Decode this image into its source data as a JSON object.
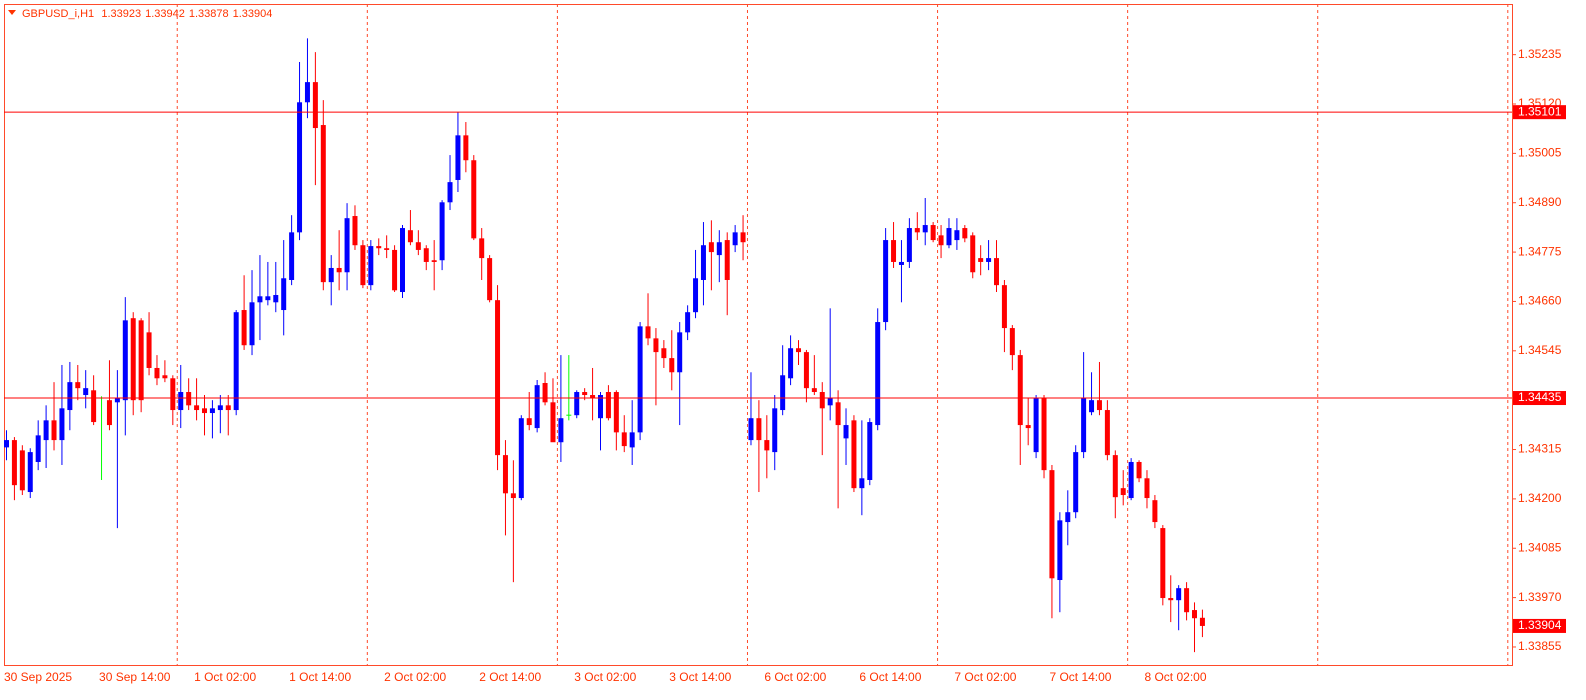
{
  "chart_data": {
    "type": "candlestick",
    "symbol": "GBPUSD_i,H1",
    "up_color": "#0000ff",
    "down_color": "#ff0000",
    "doji_color": "#00ff00",
    "line_color": "#ff0000",
    "label_color": "#ff0000",
    "period_separators": true,
    "ylim": [
      1.33813,
      1.35353
    ],
    "yticks": [
      1.35235,
      {
        "value": 1.3512,
        "label": "1.35120"
      },
      1.35005,
      {
        "value": 1.3489,
        "label": "1.34890"
      },
      1.34775,
      {
        "value": 1.3466,
        "label": "1.34660"
      },
      1.34545,
      1.34315,
      {
        "value": 1.342,
        "label": "1.34200"
      },
      1.34085,
      {
        "value": 1.3397,
        "label": "1.33970"
      },
      1.33855
    ],
    "hlines": [
      1.35101,
      1.34435
    ],
    "categories": [
      "30 Sep 2025",
      null,
      null,
      null,
      null,
      null,
      null,
      null,
      null,
      null,
      null,
      null,
      "30 Sep 14:00",
      null,
      null,
      null,
      null,
      null,
      null,
      null,
      null,
      null,
      null,
      null,
      "1 Oct 02:00",
      null,
      null,
      null,
      null,
      null,
      null,
      null,
      null,
      null,
      null,
      null,
      "1 Oct 14:00",
      null,
      null,
      null,
      null,
      null,
      null,
      null,
      null,
      null,
      null,
      null,
      "2 Oct 02:00",
      null,
      null,
      null,
      null,
      null,
      null,
      null,
      null,
      null,
      null,
      null,
      "2 Oct 14:00",
      null,
      null,
      null,
      null,
      null,
      null,
      null,
      null,
      null,
      null,
      null,
      "3 Oct 02:00",
      null,
      null,
      null,
      null,
      null,
      null,
      null,
      null,
      null,
      null,
      null,
      "3 Oct 14:00",
      null,
      null,
      null,
      null,
      null,
      null,
      null,
      null,
      null,
      null,
      null,
      "6 Oct 02:00",
      null,
      null,
      null,
      null,
      null,
      null,
      null,
      null,
      null,
      null,
      null,
      "6 Oct 14:00",
      null,
      null,
      null,
      null,
      null,
      null,
      null,
      null,
      null,
      null,
      null,
      "7 Oct 02:00",
      null,
      null,
      null,
      null,
      null,
      null,
      null,
      null,
      null,
      null,
      null,
      "7 Oct 14:00",
      null,
      null,
      null,
      null,
      null,
      null,
      null,
      null,
      null,
      null,
      null,
      "8 Oct 02:00",
      null,
      null,
      null,
      null,
      null,
      null,
      null
    ],
    "ohlc": [
      [
        1.3432,
        1.3436,
        1.3429,
        1.34337
      ],
      [
        1.34337,
        1.34344,
        1.34197,
        1.34232
      ],
      [
        1.34313,
        1.34325,
        1.34209,
        1.3422
      ],
      [
        1.34216,
        1.34318,
        1.34202,
        1.34309
      ],
      [
        1.34286,
        1.34383,
        1.34267,
        1.34348
      ],
      [
        1.34337,
        1.34418,
        1.34272,
        1.34383
      ],
      [
        1.34383,
        1.34472,
        1.34313,
        1.34337
      ],
      [
        1.34337,
        1.34512,
        1.34279,
        1.34411
      ],
      [
        1.34407,
        1.34519,
        1.3436,
        1.34472
      ],
      [
        1.34472,
        1.34512,
        1.3443,
        1.34458
      ],
      [
        1.34442,
        1.345,
        1.34411,
        1.34458
      ],
      [
        1.34453,
        1.34488,
        1.34372,
        1.34379
      ],
      [
        1.34435,
        1.34439,
        1.34244,
        1.34435
      ],
      [
        1.3443,
        1.34523,
        1.3436,
        1.34372
      ],
      [
        1.34425,
        1.345,
        1.34132,
        1.34435
      ],
      [
        1.3443,
        1.3467,
        1.34348,
        1.34616
      ],
      [
        1.34621,
        1.34635,
        1.34395,
        1.3443
      ],
      [
        1.34616,
        1.34621,
        1.34402,
        1.3443
      ],
      [
        1.34588,
        1.34635,
        1.34488,
        1.34505
      ],
      [
        1.34505,
        1.34535,
        1.34465,
        1.34481
      ],
      [
        1.34488,
        1.34523,
        1.34472,
        1.34481
      ],
      [
        1.34481,
        1.34488,
        1.34372,
        1.34407
      ],
      [
        1.34407,
        1.34512,
        1.34365,
        1.34449
      ],
      [
        1.34449,
        1.34481,
        1.34407,
        1.34418
      ],
      [
        1.34418,
        1.34481,
        1.34383,
        1.34407
      ],
      [
        1.34411,
        1.34442,
        1.34348,
        1.344
      ],
      [
        1.344,
        1.3443,
        1.34341,
        1.34411
      ],
      [
        1.34407,
        1.34442,
        1.34353,
        1.34418
      ],
      [
        1.34418,
        1.34442,
        1.34348,
        1.34407
      ],
      [
        1.34407,
        1.3464,
        1.34395,
        1.34635
      ],
      [
        1.3464,
        1.34721,
        1.34547,
        1.34558
      ],
      [
        1.34558,
        1.34733,
        1.34535,
        1.34658
      ],
      [
        1.34658,
        1.34768,
        1.3457,
        1.34672
      ],
      [
        1.34663,
        1.34752,
        1.34651,
        1.34672
      ],
      [
        1.34658,
        1.34752,
        1.34635,
        1.34675
      ],
      [
        1.3464,
        1.34803,
        1.34581,
        1.34714
      ],
      [
        1.3471,
        1.34861,
        1.34698,
        1.34821
      ],
      [
        1.34821,
        1.35218,
        1.34803,
        1.35124
      ],
      [
        1.35124,
        1.35273,
        1.35087,
        1.35171
      ],
      [
        1.35171,
        1.35241,
        1.34931,
        1.35064
      ],
      [
        1.35071,
        1.35129,
        1.34686,
        1.34705
      ],
      [
        1.34705,
        1.34768,
        1.34651,
        1.34738
      ],
      [
        1.34738,
        1.34826,
        1.34686,
        1.34728
      ],
      [
        1.34728,
        1.34889,
        1.34686,
        1.34854
      ],
      [
        1.34859,
        1.34884,
        1.3478,
        1.34791
      ],
      [
        1.34791,
        1.34803,
        1.34691,
        1.34698
      ],
      [
        1.34698,
        1.34803,
        1.34686,
        1.34789
      ],
      [
        1.34789,
        1.34807,
        1.34768,
        1.34784
      ],
      [
        1.34784,
        1.34814,
        1.34761,
        1.3478
      ],
      [
        1.3478,
        1.34791,
        1.34682,
        1.34686
      ],
      [
        1.34682,
        1.34838,
        1.34668,
        1.34831
      ],
      [
        1.34826,
        1.34873,
        1.34791,
        1.34798
      ],
      [
        1.34798,
        1.34826,
        1.34768,
        1.3478
      ],
      [
        1.34784,
        1.34791,
        1.34733,
        1.34752
      ],
      [
        1.34756,
        1.34803,
        1.34686,
        1.34752
      ],
      [
        1.34756,
        1.34896,
        1.34733,
        1.34891
      ],
      [
        1.34891,
        1.35001,
        1.34873,
        1.34938
      ],
      [
        1.34943,
        1.35101,
        1.34915,
        1.35047
      ],
      [
        1.35047,
        1.35078,
        1.34961,
        1.34989
      ],
      [
        1.34989,
        1.35001,
        1.34803,
        1.34807
      ],
      [
        1.34807,
        1.34831,
        1.3471,
        1.34761
      ],
      [
        1.34761,
        1.34768,
        1.34658,
        1.34663
      ],
      [
        1.34663,
        1.34698,
        1.34267,
        1.34302
      ],
      [
        1.34302,
        1.34337,
        1.34115,
        1.34213
      ],
      [
        1.34213,
        1.3429,
        1.34006,
        1.34202
      ],
      [
        1.34202,
        1.34395,
        1.34197,
        1.34388
      ],
      [
        1.34388,
        1.34449,
        1.3436,
        1.34372
      ],
      [
        1.34365,
        1.34477,
        1.34355,
        1.34465
      ],
      [
        1.3447,
        1.34495,
        1.34418,
        1.34425
      ],
      [
        1.34425,
        1.34481,
        1.34337,
        1.34332
      ],
      [
        1.34332,
        1.34535,
        1.34286,
        1.34388
      ],
      [
        1.34395,
        1.34535,
        1.34383,
        1.34395
      ],
      [
        1.34395,
        1.34453,
        1.34388,
        1.34449
      ],
      [
        1.34449,
        1.34458,
        1.3443,
        1.34442
      ],
      [
        1.34442,
        1.34505,
        1.34383,
        1.34435
      ],
      [
        1.34388,
        1.34449,
        1.34313,
        1.34442
      ],
      [
        1.34449,
        1.34465,
        1.34383,
        1.34388
      ],
      [
        1.34449,
        1.34453,
        1.34313,
        1.34355
      ],
      [
        1.34355,
        1.34395,
        1.34309,
        1.34323
      ],
      [
        1.3432,
        1.3443,
        1.34279,
        1.34355
      ],
      [
        1.34355,
        1.34612,
        1.34337,
        1.34602
      ],
      [
        1.34602,
        1.34679,
        1.34558,
        1.34574
      ],
      [
        1.34574,
        1.34598,
        1.34418,
        1.34542
      ],
      [
        1.34551,
        1.3457,
        1.34505,
        1.34528
      ],
      [
        1.34528,
        1.34593,
        1.34453,
        1.34495
      ],
      [
        1.34495,
        1.34612,
        1.34372,
        1.34588
      ],
      [
        1.34588,
        1.34651,
        1.3457,
        1.34635
      ],
      [
        1.34635,
        1.3478,
        1.34621,
        1.34714
      ],
      [
        1.3471,
        1.34845,
        1.34651,
        1.34791
      ],
      [
        1.34798,
        1.34849,
        1.34686,
        1.34775
      ],
      [
        1.34768,
        1.34826,
        1.34705,
        1.34798
      ],
      [
        1.34803,
        1.34821,
        1.34628,
        1.3471
      ],
      [
        1.34791,
        1.34838,
        1.34775,
        1.34821
      ],
      [
        1.34821,
        1.34861,
        1.34756,
        1.34798
      ],
      [
        1.34337,
        1.34495,
        1.34325,
        1.34388
      ],
      [
        1.34388,
        1.3443,
        1.34216,
        1.34337
      ],
      [
        1.34337,
        1.34395,
        1.34248,
        1.34313
      ],
      [
        1.34309,
        1.34442,
        1.34267,
        1.34411
      ],
      [
        1.34407,
        1.34558,
        1.34395,
        1.34488
      ],
      [
        1.34481,
        1.34581,
        1.34465,
        1.34551
      ],
      [
        1.34551,
        1.3457,
        1.34512,
        1.34542
      ],
      [
        1.34542,
        1.34547,
        1.34425,
        1.34458
      ],
      [
        1.34458,
        1.34535,
        1.34442,
        1.34449
      ],
      [
        1.34449,
        1.34472,
        1.34302,
        1.34411
      ],
      [
        1.34418,
        1.34644,
        1.34383,
        1.34435
      ],
      [
        1.34425,
        1.34453,
        1.34178,
        1.34372
      ],
      [
        1.34341,
        1.34411,
        1.34279,
        1.34372
      ],
      [
        1.34383,
        1.34395,
        1.34216,
        1.34225
      ],
      [
        1.34225,
        1.34383,
        1.34162,
        1.34248
      ],
      [
        1.34244,
        1.34388,
        1.34232,
        1.34379
      ],
      [
        1.34372,
        1.34644,
        1.3436,
        1.34612
      ],
      [
        1.34612,
        1.34831,
        1.34593,
        1.34803
      ],
      [
        1.34803,
        1.34845,
        1.34738,
        1.34752
      ],
      [
        1.34745,
        1.34803,
        1.34658,
        1.34752
      ],
      [
        1.34752,
        1.34854,
        1.34738,
        1.34831
      ],
      [
        1.34831,
        1.34868,
        1.34803,
        1.34821
      ],
      [
        1.34821,
        1.34901,
        1.34791,
        1.34838
      ],
      [
        1.34838,
        1.34845,
        1.34798,
        1.34803
      ],
      [
        1.34814,
        1.34838,
        1.34761,
        1.34791
      ],
      [
        1.34791,
        1.34854,
        1.34784,
        1.34831
      ],
      [
        1.34803,
        1.34854,
        1.3478,
        1.34826
      ],
      [
        1.34831,
        1.34838,
        1.34798,
        1.34807
      ],
      [
        1.34814,
        1.34821,
        1.34714,
        1.34728
      ],
      [
        1.34761,
        1.34791,
        1.34721,
        1.34752
      ],
      [
        1.34752,
        1.34803,
        1.34733,
        1.34761
      ],
      [
        1.34761,
        1.34803,
        1.34682,
        1.34698
      ],
      [
        1.34698,
        1.3471,
        1.34542,
        1.34598
      ],
      [
        1.34598,
        1.34605,
        1.345,
        1.34535
      ],
      [
        1.34535,
        1.34547,
        1.34279,
        1.34372
      ],
      [
        1.34372,
        1.34435,
        1.34325,
        1.34365
      ],
      [
        1.34309,
        1.34442,
        1.34295,
        1.34435
      ],
      [
        1.34435,
        1.34442,
        1.34248,
        1.34267
      ],
      [
        1.34267,
        1.34279,
        1.33922,
        1.34015
      ],
      [
        1.34011,
        1.34169,
        1.33936,
        1.3415
      ],
      [
        1.34146,
        1.3422,
        1.34092,
        1.34169
      ],
      [
        1.34169,
        1.34325,
        1.34155,
        1.34309
      ],
      [
        1.34309,
        1.34542,
        1.34295,
        1.34435
      ],
      [
        1.34402,
        1.34495,
        1.34395,
        1.3443
      ],
      [
        1.3443,
        1.34519,
        1.34395,
        1.34407
      ],
      [
        1.34407,
        1.3443,
        1.3429,
        1.34302
      ],
      [
        1.34302,
        1.34313,
        1.34155,
        1.34204
      ],
      [
        1.34225,
        1.34267,
        1.34185,
        1.34209
      ],
      [
        1.34202,
        1.34295,
        1.34197,
        1.34286
      ],
      [
        1.34286,
        1.3429,
        1.34239,
        1.34248
      ],
      [
        1.34248,
        1.34267,
        1.34178,
        1.34202
      ],
      [
        1.34197,
        1.34209,
        1.34132,
        1.34146
      ],
      [
        1.34132,
        1.34139,
        1.33952,
        1.33969
      ],
      [
        1.33969,
        1.34022,
        1.33913,
        1.33964
      ],
      [
        1.33964,
        1.33999,
        1.33894,
        1.33992
      ],
      [
        1.33992,
        1.34006,
        1.33917,
        1.33936
      ],
      [
        1.33941,
        1.33959,
        1.33843,
        1.33922
      ],
      [
        1.33923,
        1.33942,
        1.33878,
        1.33904
      ]
    ]
  }
}
